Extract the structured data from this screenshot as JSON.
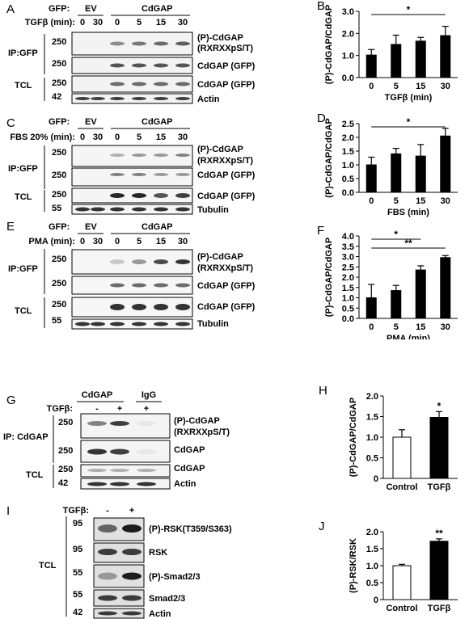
{
  "figure": {
    "panels": {
      "A": {
        "letter": "A",
        "gfp_label": "GFP:",
        "ev_label": "EV",
        "group_label": "CdGAP",
        "time_label": "TGFβ (min):",
        "times": [
          "0",
          "30",
          "0",
          "5",
          "15",
          "30"
        ],
        "ip_label": "IP:GFP",
        "tcl_label": "TCL",
        "mw": [
          "250",
          "250",
          "250",
          "42"
        ],
        "blot_labels": [
          "(P)-CdGAP",
          "(RXRXXpS/T)",
          "CdGAP (GFP)",
          "CdGAP (GFP)",
          "Actin"
        ],
        "blot_intensities": [
          [
            0,
            0,
            0.45,
            0.55,
            0.6,
            0.65
          ],
          [
            0,
            0,
            0.7,
            0.7,
            0.7,
            0.7
          ],
          [
            0,
            0,
            0.6,
            0.6,
            0.6,
            0.6
          ],
          [
            0.8,
            0.8,
            0.8,
            0.8,
            0.8,
            0.8
          ]
        ]
      },
      "C": {
        "letter": "C",
        "gfp_label": "GFP:",
        "ev_label": "EV",
        "group_label": "CdGAP",
        "time_label": "FBS 20% (min):",
        "times": [
          "0",
          "30",
          "0",
          "5",
          "15",
          "30"
        ],
        "ip_label": "IP:GFP",
        "tcl_label": "TCL",
        "mw": [
          "250",
          "250",
          "250",
          "55"
        ],
        "blot_labels": [
          "(P)-CdGAP",
          "(RXRXXpS/T)",
          "CdGAP (GFP)",
          "CdGAP (GFP)",
          "Tubulin"
        ],
        "blot_intensities": [
          [
            0,
            0,
            0.3,
            0.4,
            0.4,
            0.5
          ],
          [
            0,
            0,
            0.5,
            0.5,
            0.4,
            0.4
          ],
          [
            0,
            0,
            0.9,
            0.9,
            0.7,
            0.8
          ],
          [
            0.85,
            0.85,
            0.85,
            0.85,
            0.85,
            0.85
          ]
        ]
      },
      "E": {
        "letter": "E",
        "gfp_label": "GFP:",
        "ev_label": "EV",
        "group_label": "CdGAP",
        "time_label": "PMA (min):",
        "times": [
          "0",
          "30",
          "0",
          "5",
          "15",
          "30"
        ],
        "ip_label": "IP:GFP",
        "tcl_label": "TCL",
        "mw": [
          "250",
          "250",
          "250",
          "55"
        ],
        "blot_labels": [
          "(P)-CdGAP",
          "(RXRXXpS/T)",
          "CdGAP (GFP)",
          "CdGAP (GFP)",
          "Tubulin"
        ],
        "blot_intensities": [
          [
            0,
            0,
            0.2,
            0.4,
            0.75,
            0.85
          ],
          [
            0,
            0,
            0.6,
            0.6,
            0.6,
            0.6
          ],
          [
            0,
            0,
            0.85,
            0.85,
            0.85,
            0.85
          ],
          [
            0.85,
            0.85,
            0.85,
            0.85,
            0.85,
            0.85
          ]
        ]
      },
      "G": {
        "letter": "G",
        "group_label": "CdGAP",
        "igg_label": "IgG",
        "treat_label": "TGFβ:",
        "treat_values": [
          "-",
          "+",
          "+"
        ],
        "ip_label": "IP: CdGAP",
        "tcl_label": "TCL",
        "mw": [
          "250",
          "250",
          "250",
          "42"
        ],
        "blot_labels": [
          "(P)-CdGAP",
          "(RXRXXpS/T)",
          "CdGAP",
          "CdGAP",
          "Actin"
        ],
        "blot_intensities": [
          [
            0.5,
            0.8,
            0.05
          ],
          [
            0.85,
            0.8,
            0.05
          ],
          [
            0.3,
            0.3,
            0.3
          ],
          [
            0.85,
            0.85,
            0.85
          ]
        ]
      },
      "I": {
        "letter": "I",
        "treat_label": "TGFβ:",
        "treat_values": [
          "-",
          "+"
        ],
        "tcl_label": "TCL",
        "mw": [
          "95",
          "95",
          "55",
          "55",
          "42"
        ],
        "blot_labels": [
          "(P)-RSK(T359/S363)",
          "RSK",
          "(P)-Smad2/3",
          "Smad2/3",
          "Actin"
        ],
        "blot_intensities": [
          [
            0.6,
            0.95
          ],
          [
            0.8,
            0.8
          ],
          [
            0.35,
            0.95
          ],
          [
            0.8,
            0.8
          ],
          [
            0.8,
            0.8
          ]
        ]
      }
    }
  },
  "chart_data": [
    {
      "id": "B",
      "letter": "B",
      "type": "bar",
      "categories": [
        "0",
        "5",
        "15",
        "30"
      ],
      "values": [
        1.02,
        1.5,
        1.65,
        1.9
      ],
      "errors": [
        0.25,
        0.42,
        0.17,
        0.42
      ],
      "ylabel": "(P)-CdGAP/CdGAP",
      "xlabel": "TGFβ (min)",
      "ylim": [
        0,
        3.0
      ],
      "yticks": [
        "0.0",
        "1.0",
        "2.0",
        "3.0"
      ],
      "ytick_values": [
        0,
        1,
        2,
        3
      ],
      "bar_color": "#000000",
      "significance": [
        {
          "from": 0,
          "to": 3,
          "label": "*"
        }
      ]
    },
    {
      "id": "D",
      "letter": "D",
      "type": "bar",
      "categories": [
        "0",
        "5",
        "15",
        "30"
      ],
      "values": [
        1.0,
        1.4,
        1.32,
        2.05
      ],
      "errors": [
        0.28,
        0.2,
        0.42,
        0.28
      ],
      "ylabel": "(P)-CdGAP/CdGAP",
      "xlabel": "FBS (min)",
      "ylim": [
        0,
        2.5
      ],
      "yticks": [
        "0.0",
        "0.5",
        "1.0",
        "1.5",
        "2.0",
        "2.5"
      ],
      "ytick_values": [
        0,
        0.5,
        1,
        1.5,
        2,
        2.5
      ],
      "bar_color": "#000000",
      "significance": [
        {
          "from": 0,
          "to": 3,
          "label": "*"
        }
      ]
    },
    {
      "id": "F",
      "letter": "F",
      "type": "bar",
      "categories": [
        "0",
        "5",
        "15",
        "30"
      ],
      "values": [
        1.0,
        1.35,
        2.35,
        2.95
      ],
      "errors": [
        0.65,
        0.25,
        0.2,
        0.1
      ],
      "ylabel": "(P)-CdGAP/CdGAP",
      "xlabel": "PMA (min)",
      "ylim": [
        0,
        4.0
      ],
      "yticks": [
        "0.0",
        "0.5",
        "1.0",
        "1.5",
        "2.0",
        "2.5",
        "3.0",
        "3.5",
        "4.0"
      ],
      "ytick_values": [
        0,
        0.5,
        1,
        1.5,
        2,
        2.5,
        3,
        3.5,
        4
      ],
      "bar_color": "#000000",
      "significance": [
        {
          "from": 0,
          "to": 2,
          "label": "*"
        },
        {
          "from": 0,
          "to": 3,
          "label": "**"
        }
      ]
    },
    {
      "id": "H",
      "letter": "H",
      "type": "bar",
      "categories": [
        "Control",
        "TGFβ"
      ],
      "values": [
        1.0,
        1.48
      ],
      "errors": [
        0.18,
        0.14
      ],
      "ylabel": "(P)-CdGAP/CdGAP",
      "xlabel": "",
      "ylim": [
        0,
        2.0
      ],
      "yticks": [
        "0",
        "0.5",
        "1.0",
        "1.5",
        "2.0"
      ],
      "ytick_values": [
        0,
        0.5,
        1,
        1.5,
        2
      ],
      "bar_fills": [
        "#ffffff",
        "#000000"
      ],
      "bar_marks": [
        "",
        "*"
      ]
    },
    {
      "id": "J",
      "letter": "J",
      "type": "bar",
      "categories": [
        "Control",
        "TGFβ"
      ],
      "values": [
        1.0,
        1.72
      ],
      "errors": [
        0.04,
        0.07
      ],
      "ylabel": "(P)-RSK/RSK",
      "xlabel": "",
      "ylim": [
        0,
        2.0
      ],
      "yticks": [
        "0",
        "0.5",
        "1.0",
        "1.5",
        "2.0"
      ],
      "ytick_values": [
        0,
        0.5,
        1,
        1.5,
        2
      ],
      "bar_fills": [
        "#ffffff",
        "#000000"
      ],
      "bar_marks": [
        "",
        "**"
      ]
    }
  ]
}
